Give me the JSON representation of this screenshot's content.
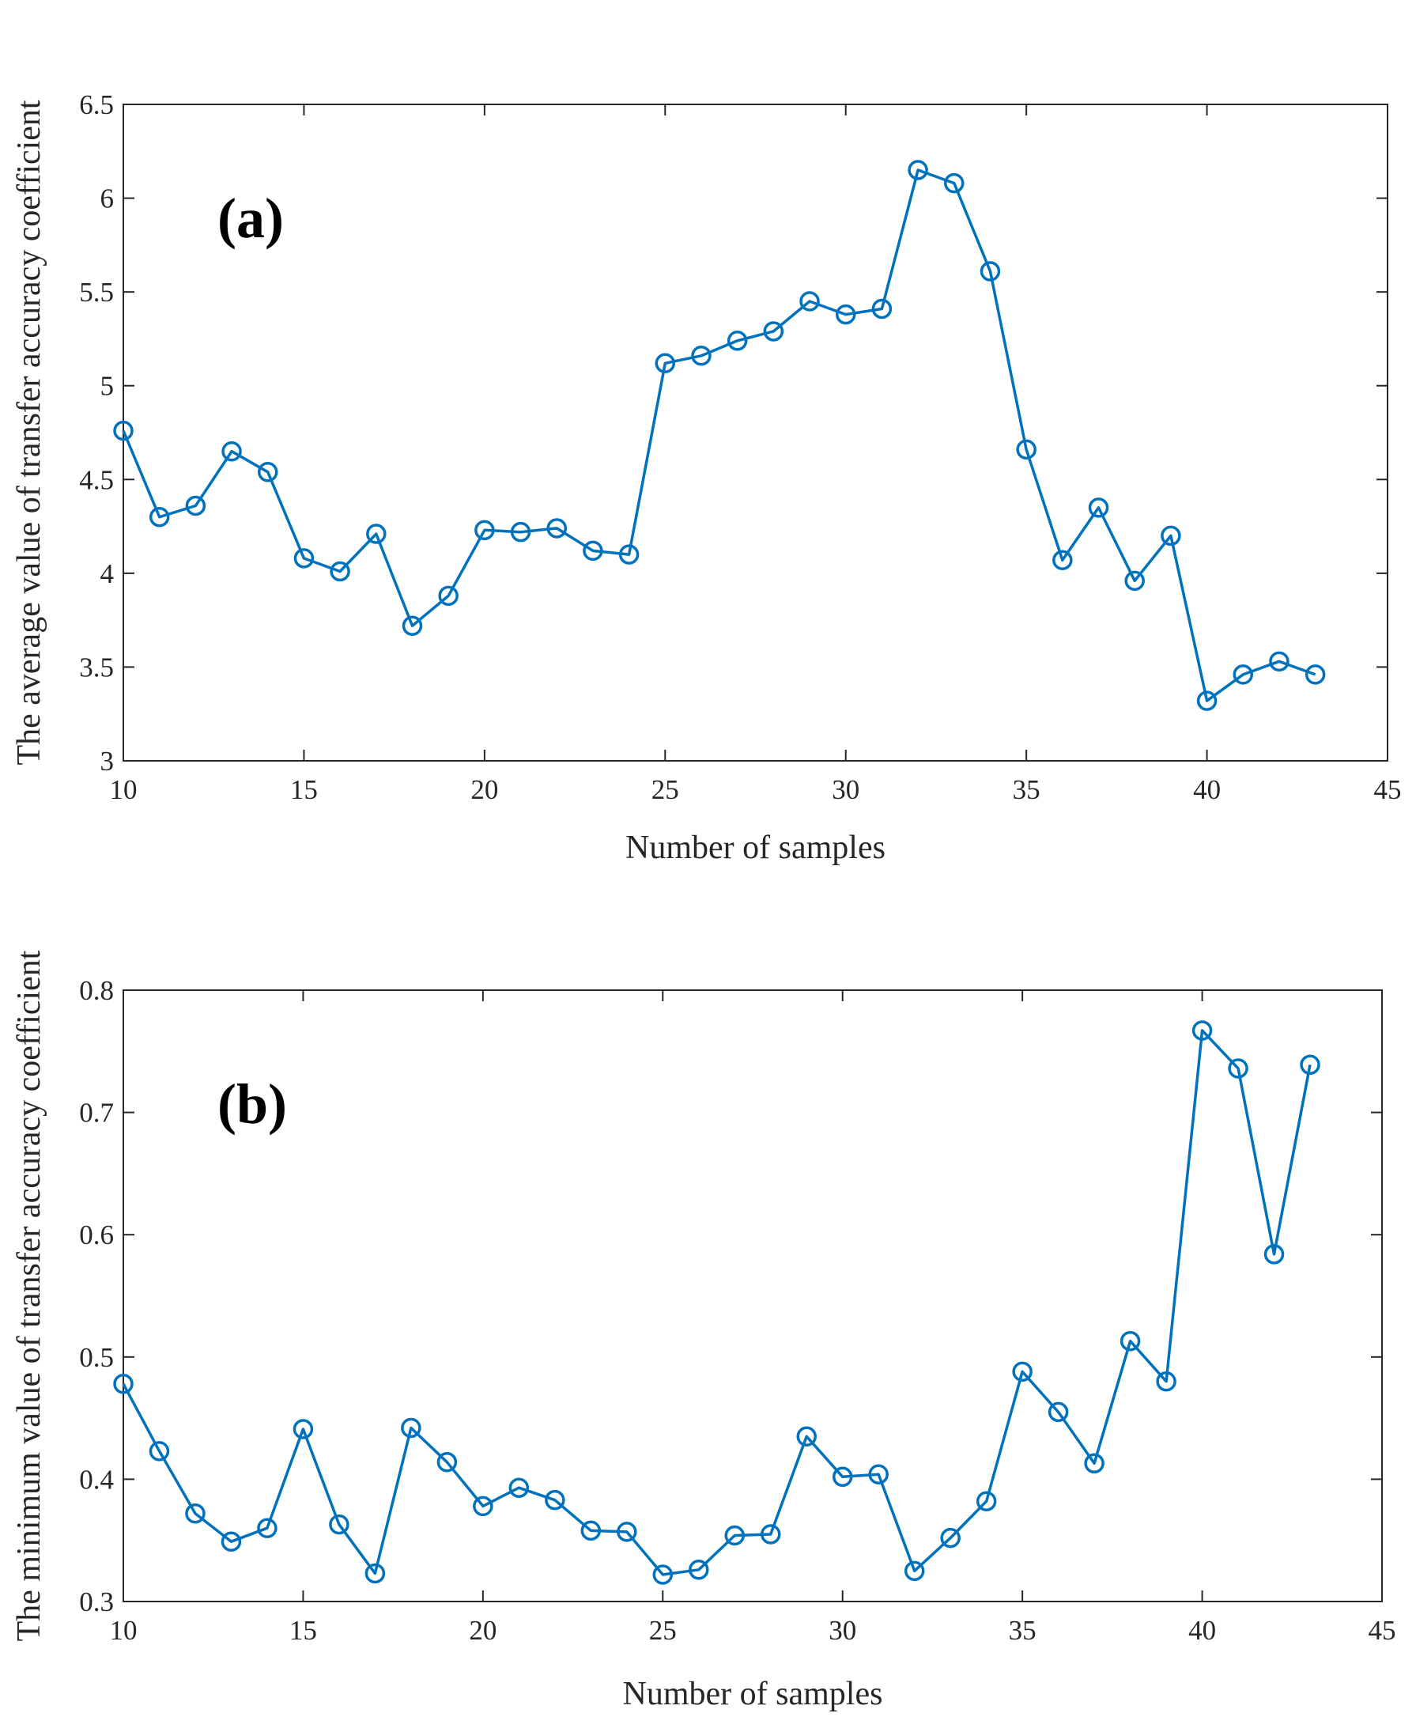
{
  "chart_data": [
    {
      "type": "line",
      "panel_label": "(a)",
      "xlabel": "Number of samples",
      "ylabel": "The average value of transfer accuracy coefficient",
      "xlim": [
        10,
        45
      ],
      "ylim": [
        3,
        6.5
      ],
      "xticks": [
        10,
        15,
        20,
        25,
        30,
        35,
        40,
        45
      ],
      "yticks": [
        3,
        3.5,
        4,
        4.5,
        5,
        5.5,
        6,
        6.5
      ],
      "ytick_labels": [
        "3",
        "3.5",
        "4",
        "4.5",
        "5",
        "5.5",
        "6",
        "6.5"
      ],
      "series": [
        {
          "name": "average",
          "color": "#0072BD",
          "marker": "circle",
          "x": [
            10,
            11,
            12,
            13,
            14,
            15,
            16,
            17,
            18,
            19,
            20,
            21,
            22,
            23,
            24,
            25,
            26,
            27,
            28,
            29,
            30,
            31,
            32,
            33,
            34,
            35,
            36,
            37,
            38,
            39,
            40,
            41,
            42,
            43
          ],
          "values": [
            4.76,
            4.3,
            4.36,
            4.65,
            4.54,
            4.08,
            4.01,
            4.21,
            3.72,
            3.88,
            4.23,
            4.22,
            4.24,
            4.12,
            4.1,
            5.12,
            5.16,
            5.24,
            5.29,
            5.45,
            5.38,
            5.41,
            6.15,
            6.08,
            5.61,
            4.66,
            4.07,
            4.35,
            3.96,
            4.2,
            3.32,
            3.46,
            3.53,
            3.46
          ]
        }
      ]
    },
    {
      "type": "line",
      "panel_label": "(b)",
      "xlabel": "Number of samples",
      "ylabel": "The minimum value of transfer accuracy coefficient",
      "xlim": [
        10,
        45
      ],
      "ylim": [
        0.3,
        0.8
      ],
      "xticks": [
        10,
        15,
        20,
        25,
        30,
        35,
        40,
        45
      ],
      "yticks": [
        0.3,
        0.4,
        0.5,
        0.6,
        0.7,
        0.8
      ],
      "ytick_labels": [
        "0.3",
        "0.4",
        "0.5",
        "0.6",
        "0.7",
        "0.8"
      ],
      "series": [
        {
          "name": "minimum",
          "color": "#0072BD",
          "marker": "circle",
          "x": [
            10,
            11,
            12,
            13,
            14,
            15,
            16,
            17,
            18,
            19,
            20,
            21,
            22,
            23,
            24,
            25,
            26,
            27,
            28,
            29,
            30,
            31,
            32,
            33,
            34,
            35,
            36,
            37,
            38,
            39,
            40,
            41,
            42,
            43
          ],
          "values": [
            0.478,
            0.423,
            0.372,
            0.349,
            0.36,
            0.441,
            0.363,
            0.323,
            0.442,
            0.414,
            0.378,
            0.393,
            0.383,
            0.358,
            0.357,
            0.322,
            0.326,
            0.354,
            0.355,
            0.435,
            0.402,
            0.404,
            0.325,
            0.352,
            0.382,
            0.488,
            0.455,
            0.413,
            0.513,
            0.48,
            0.767,
            0.736,
            0.584,
            0.739
          ]
        }
      ]
    }
  ]
}
